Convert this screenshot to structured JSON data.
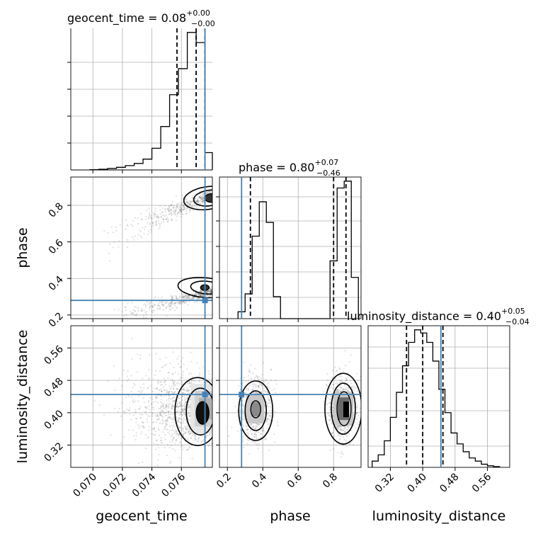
{
  "chart_data": [
    {
      "type": "histogram",
      "panel": "geocent_time-marginal",
      "title": "geocent_time = 0.08",
      "title_sup": "+0.00",
      "title_sub": "−0.00",
      "xlim": [
        0.0685,
        0.0781
      ],
      "bin_edges": [
        0.0698,
        0.0704,
        0.071,
        0.0716,
        0.0722,
        0.0728,
        0.0734,
        0.074,
        0.0746,
        0.0752,
        0.0758,
        0.0764,
        0.077,
        0.0776,
        0.0781
      ],
      "counts": [
        0.2,
        0.5,
        1.0,
        1.8,
        3.0,
        4.5,
        7.5,
        15,
        30,
        52,
        70,
        95,
        88,
        12
      ],
      "quantiles": [
        0.0757,
        0.077,
        0.0776
      ],
      "truth": 0.0776
    },
    {
      "type": "histogram",
      "panel": "phase-marginal",
      "title": "phase = 0.80",
      "title_sup": "+0.07",
      "title_sub": "−0.46",
      "xlim": [
        0.155,
        0.955
      ],
      "bin_edges": [
        0.26,
        0.3,
        0.34,
        0.38,
        0.42,
        0.46,
        0.5,
        0.54,
        0.58,
        0.62,
        0.66,
        0.7,
        0.74,
        0.78,
        0.82,
        0.86,
        0.9,
        0.94
      ],
      "counts": [
        5,
        18,
        60,
        85,
        70,
        16,
        0,
        0,
        0,
        0,
        0,
        0,
        0,
        42,
        95,
        100,
        30
      ],
      "quantiles": [
        0.33,
        0.8,
        0.87
      ],
      "truth": 0.28
    },
    {
      "type": "histogram",
      "panel": "luminosity_distance-marginal",
      "title": "luminosity_distance = 0.40",
      "title_sup": "+0.05",
      "title_sub": "−0.04",
      "xlim": [
        0.265,
        0.615
      ],
      "bin_edges": [
        0.275,
        0.29,
        0.305,
        0.32,
        0.335,
        0.35,
        0.365,
        0.38,
        0.395,
        0.41,
        0.425,
        0.44,
        0.455,
        0.47,
        0.485,
        0.5,
        0.515,
        0.53,
        0.545,
        0.56,
        0.575,
        0.59
      ],
      "counts": [
        4,
        8,
        17,
        32,
        48,
        65,
        80,
        88,
        86,
        80,
        68,
        50,
        35,
        22,
        15,
        10,
        6,
        4,
        2,
        1,
        0.5
      ],
      "quantiles": [
        0.36,
        0.4,
        0.45
      ],
      "truth": 0.445
    },
    {
      "type": "contour",
      "panel": "geocent_time-vs-phase",
      "xlim": [
        0.0685,
        0.0781
      ],
      "ylim": [
        0.18,
        0.955
      ],
      "truth": [
        0.0776,
        0.28
      ]
    },
    {
      "type": "contour",
      "panel": "geocent_time-vs-luminosity_distance",
      "xlim": [
        0.0685,
        0.0781
      ],
      "ylim": [
        0.265,
        0.615
      ],
      "truth": [
        0.0776,
        0.445
      ]
    },
    {
      "type": "contour",
      "panel": "phase-vs-luminosity_distance",
      "xlim": [
        0.155,
        0.955
      ],
      "ylim": [
        0.265,
        0.615
      ],
      "truth": [
        0.28,
        0.445
      ]
    }
  ],
  "axes": {
    "xlabel_geocent": "geocent_time",
    "xlabel_phase": "phase",
    "xlabel_lumdist": "luminosity_distance",
    "ylabel_phase": "phase",
    "ylabel_lumdist": "luminosity_distance",
    "ticks_geocent": [
      "0.070",
      "0.072",
      "0.074",
      "0.076"
    ],
    "ticks_phase": [
      "0.2",
      "0.4",
      "0.6",
      "0.8"
    ],
    "ticks_phase_y": [
      "0.2",
      "0.4",
      "0.6",
      "0.8"
    ],
    "ticks_lumdist": [
      "0.32",
      "0.40",
      "0.48",
      "0.56"
    ]
  },
  "colors": {
    "truth": "#4682b4",
    "hist": "#000000",
    "grid": "#b0b0b0"
  }
}
